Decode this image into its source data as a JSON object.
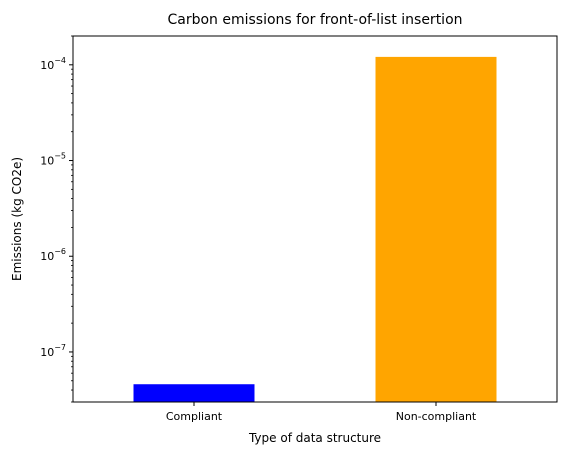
{
  "chart_data": {
    "type": "bar",
    "title": "Carbon emissions for front-of-list insertion",
    "xlabel": "Type of data structure",
    "ylabel": "Emissions (kg CO2e)",
    "categories": [
      "Compliant",
      "Non-compliant"
    ],
    "values": [
      4.6e-08,
      0.000121
    ],
    "colors": [
      "#0000ff",
      "#ffa500"
    ],
    "yscale": "log",
    "ylim": [
      3e-08,
      0.0002
    ],
    "yticks": [
      {
        "value": 1e-07,
        "base": "10",
        "exp": "−7"
      },
      {
        "value": 1e-06,
        "base": "10",
        "exp": "−6"
      },
      {
        "value": 1e-05,
        "base": "10",
        "exp": "−5"
      },
      {
        "value": 0.0001,
        "base": "10",
        "exp": "−4"
      }
    ],
    "grid": false,
    "legend": "none"
  }
}
